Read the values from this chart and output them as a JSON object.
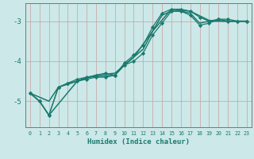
{
  "xlabel": "Humidex (Indice chaleur)",
  "ylabel": "",
  "background_color": "#cce8e8",
  "grid_color_v": "#c8a0a0",
  "grid_color_h": "#c8a0a0",
  "line_color": "#1a7a6e",
  "xlim": [
    -0.5,
    23.5
  ],
  "ylim": [
    -5.65,
    -2.55
  ],
  "yticks": [
    -5,
    -4,
    -3
  ],
  "xticks": [
    0,
    1,
    2,
    3,
    4,
    5,
    6,
    7,
    8,
    9,
    10,
    11,
    12,
    13,
    14,
    15,
    16,
    17,
    18,
    19,
    20,
    21,
    22,
    23
  ],
  "series": [
    {
      "x": [
        0,
        1,
        2,
        3,
        4,
        5,
        6,
        7,
        8,
        9,
        10,
        11,
        12,
        13,
        14,
        15,
        16,
        17,
        18,
        19,
        20,
        21,
        22,
        23
      ],
      "y": [
        -4.8,
        -5.0,
        -5.35,
        -4.65,
        -4.55,
        -4.5,
        -4.45,
        -4.4,
        -4.4,
        -4.35,
        -4.1,
        -4.0,
        -3.8,
        -3.35,
        -3.05,
        -2.75,
        -2.75,
        -2.85,
        -3.1,
        -3.05,
        -2.95,
        -2.95,
        -3.0,
        -3.0
      ],
      "marker": "D",
      "lw": 0.9,
      "ms": 2.2
    },
    {
      "x": [
        0,
        1,
        2,
        3,
        4,
        5,
        6,
        7,
        8,
        9,
        10,
        11,
        12,
        13,
        14,
        15,
        16,
        17,
        18,
        19,
        20,
        21,
        22,
        23
      ],
      "y": [
        -4.8,
        -5.0,
        -5.35,
        -4.65,
        -4.55,
        -4.45,
        -4.4,
        -4.35,
        -4.3,
        -4.35,
        -4.05,
        -3.85,
        -3.6,
        -3.15,
        -2.8,
        -2.7,
        -2.7,
        -2.75,
        -2.9,
        -3.0,
        -2.95,
        -3.0,
        -3.0,
        -3.0
      ],
      "marker": "D",
      "lw": 0.9,
      "ms": 2.2
    },
    {
      "x": [
        0,
        2,
        3,
        5,
        7,
        9,
        11,
        13,
        15,
        17,
        19,
        21,
        23
      ],
      "y": [
        -4.8,
        -5.0,
        -4.65,
        -4.5,
        -4.35,
        -4.3,
        -3.9,
        -3.25,
        -2.7,
        -2.75,
        -2.98,
        -3.0,
        -3.0
      ],
      "marker": null,
      "lw": 1.1,
      "ms": 0
    },
    {
      "x": [
        0,
        1,
        2,
        5,
        6,
        9,
        10,
        11,
        12,
        13,
        14,
        15,
        16,
        17,
        18,
        19,
        22,
        23
      ],
      "y": [
        -4.8,
        -5.0,
        -5.35,
        -4.5,
        -4.4,
        -4.35,
        -4.1,
        -3.9,
        -3.7,
        -3.25,
        -2.85,
        -2.75,
        -2.75,
        -2.8,
        -3.05,
        -3.0,
        -3.0,
        -3.0
      ],
      "marker": null,
      "lw": 1.1,
      "ms": 0
    }
  ]
}
